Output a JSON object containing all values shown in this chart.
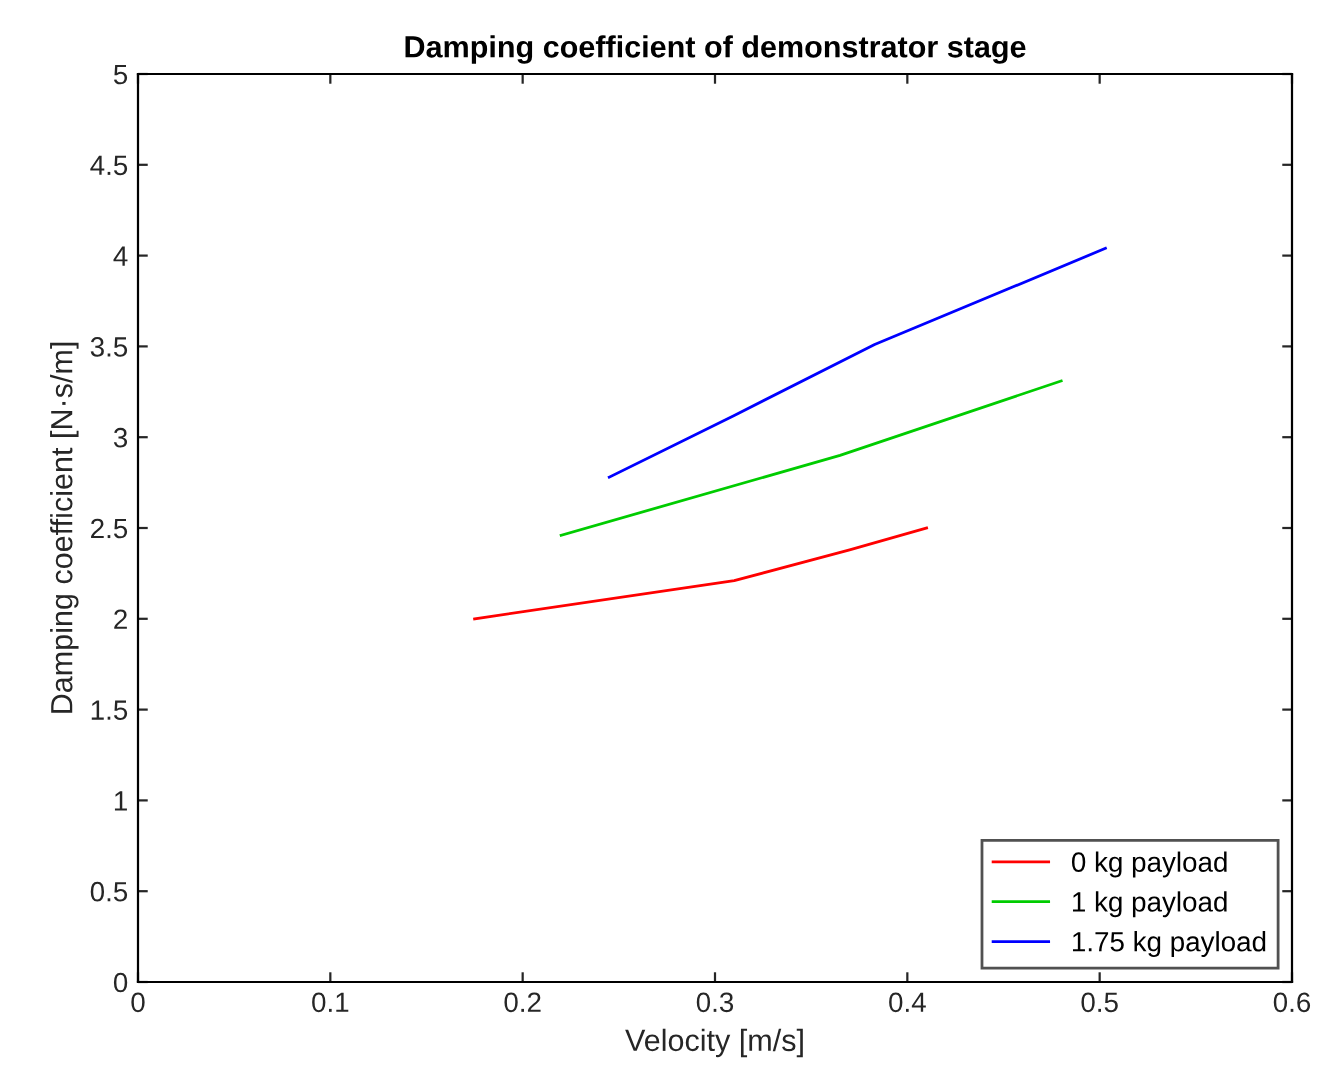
{
  "chart_data": {
    "type": "line",
    "title": "Damping coefficient of demonstrator stage",
    "xlabel": "Velocity [m/s]",
    "ylabel": "Damping coefficient [N·s/m]",
    "series": [
      {
        "name": "0 kg payload",
        "color": "#ff0000",
        "x": [
          0.175,
          0.31,
          0.37,
          0.41
        ],
        "values": [
          2.0,
          2.21,
          2.38,
          2.5
        ]
      },
      {
        "name": "1 kg payload",
        "color": "#00cc00",
        "x": [
          0.22,
          0.365,
          0.48
        ],
        "values": [
          2.46,
          2.9,
          3.31
        ]
      },
      {
        "name": "1.75 kg payload",
        "color": "#0000ff",
        "x": [
          0.245,
          0.31,
          0.383,
          0.503
        ],
        "values": [
          2.78,
          3.12,
          3.51,
          4.04
        ]
      }
    ],
    "xlim": [
      0,
      0.6
    ],
    "xticks": [
      0,
      0.1,
      0.2,
      0.3,
      0.4,
      0.5,
      0.6
    ],
    "ylim": [
      0,
      5
    ],
    "yticks": [
      0,
      0.5,
      1,
      1.5,
      2,
      2.5,
      3,
      3.5,
      4,
      4.5,
      5
    ],
    "grid": false,
    "legend": "bottom right",
    "marker": "none",
    "line_style": "solid"
  }
}
